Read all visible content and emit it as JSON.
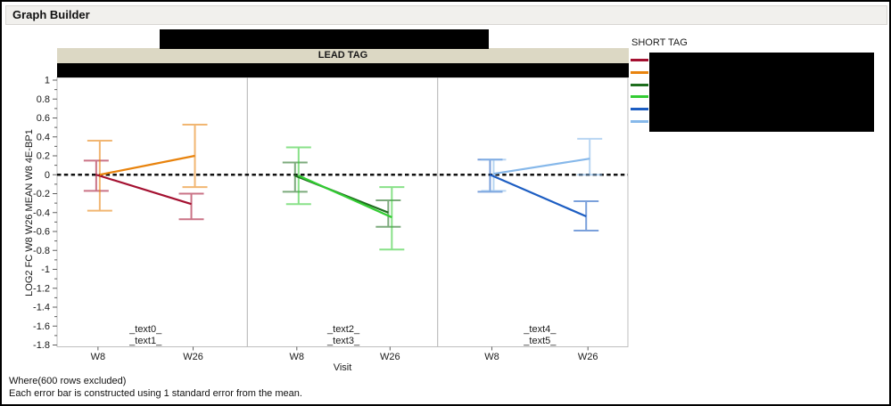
{
  "window": {
    "title": "Graph Builder"
  },
  "graph": {
    "group_header": {
      "label": "LEAD TAG"
    },
    "legend": {
      "title": "SHORT TAG",
      "labels_redacted": true,
      "entries": [
        {
          "name": "series-1",
          "color": "#A41030"
        },
        {
          "name": "series-2",
          "color": "#E8830D"
        },
        {
          "name": "series-3",
          "color": "#1E6E1E"
        },
        {
          "name": "series-4",
          "color": "#33CC33"
        },
        {
          "name": "series-5",
          "color": "#1C5DC2"
        },
        {
          "name": "series-6",
          "color": "#86B8EA"
        }
      ]
    },
    "footnotes": {
      "line1": "Where(600 rows excluded)",
      "line2": "Each error bar is constructed using 1 standard error from the mean."
    },
    "redactions": [
      "box-over-graph-title",
      "box-over-lead-tag-values",
      "box-over-legend-labels"
    ]
  },
  "chart_data": {
    "type": "line",
    "title": "LEAD TAG",
    "xlabel": "Visit",
    "ylabel": "LOG2 FC W8 W26 MEAN W8 4E-BP1",
    "ylim": [
      -1.8,
      1
    ],
    "ytick_major_step": 0.2,
    "ytick_minor_step": 0.1,
    "categories": [
      "W8",
      "W26"
    ],
    "reference_line_y": 0,
    "error_bar_rule": "1 standard error",
    "grid": false,
    "legend_position": "right",
    "panels": [
      {
        "labels": [
          "_text0_",
          "_text1_"
        ],
        "series": [
          {
            "legend": "series-1",
            "color": "#A41030",
            "means": [
              0.0,
              -0.31
            ],
            "err_low": [
              -0.17,
              -0.47
            ],
            "err_high": [
              0.15,
              -0.2
            ]
          },
          {
            "legend": "series-2",
            "color": "#E8830D",
            "means": [
              0.0,
              0.2
            ],
            "err_low": [
              -0.38,
              -0.13
            ],
            "err_high": [
              0.36,
              0.53
            ]
          }
        ]
      },
      {
        "labels": [
          "_text2_",
          "_text3_"
        ],
        "series": [
          {
            "legend": "series-3",
            "color": "#1E6E1E",
            "means": [
              -0.01,
              -0.4
            ],
            "err_low": [
              -0.18,
              -0.55
            ],
            "err_high": [
              0.13,
              -0.27
            ]
          },
          {
            "legend": "series-4",
            "color": "#33CC33",
            "means": [
              -0.01,
              -0.45
            ],
            "err_low": [
              -0.31,
              -0.79
            ],
            "err_high": [
              0.29,
              -0.13
            ]
          }
        ]
      },
      {
        "labels": [
          "_text4_",
          "_text5_"
        ],
        "series": [
          {
            "legend": "series-5",
            "color": "#1C5DC2",
            "means": [
              0.0,
              -0.44
            ],
            "err_low": [
              -0.18,
              -0.59
            ],
            "err_high": [
              0.16,
              -0.28
            ]
          },
          {
            "legend": "series-6",
            "color": "#86B8EA",
            "means": [
              0.01,
              0.17
            ],
            "err_low": [
              -0.17,
              0.0
            ],
            "err_high": [
              0.16,
              0.38
            ]
          }
        ]
      }
    ]
  }
}
